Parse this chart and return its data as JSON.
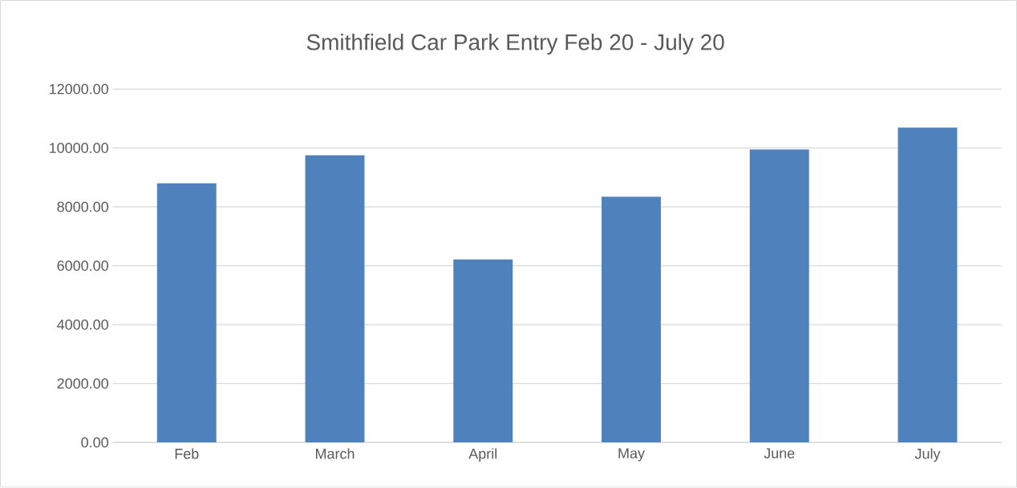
{
  "chart_data": {
    "type": "bar",
    "title": "Smithfield Car Park Entry Feb 20 - July 20",
    "categories": [
      "Feb",
      "March",
      "April",
      "May",
      "June",
      "July"
    ],
    "values": [
      8800,
      9750,
      6210,
      8340,
      9950,
      10690
    ],
    "color": "#4f81bd",
    "ylim": [
      0,
      12000
    ],
    "yticks": [
      {
        "value": 0,
        "label": "0.00"
      },
      {
        "value": 2000,
        "label": "2000.00"
      },
      {
        "value": 4000,
        "label": "4000.00"
      },
      {
        "value": 6000,
        "label": "6000.00"
      },
      {
        "value": 8000,
        "label": "8000.00"
      },
      {
        "value": 10000,
        "label": "10000.00"
      },
      {
        "value": 12000,
        "label": "12000.00"
      }
    ],
    "grid": "y"
  }
}
